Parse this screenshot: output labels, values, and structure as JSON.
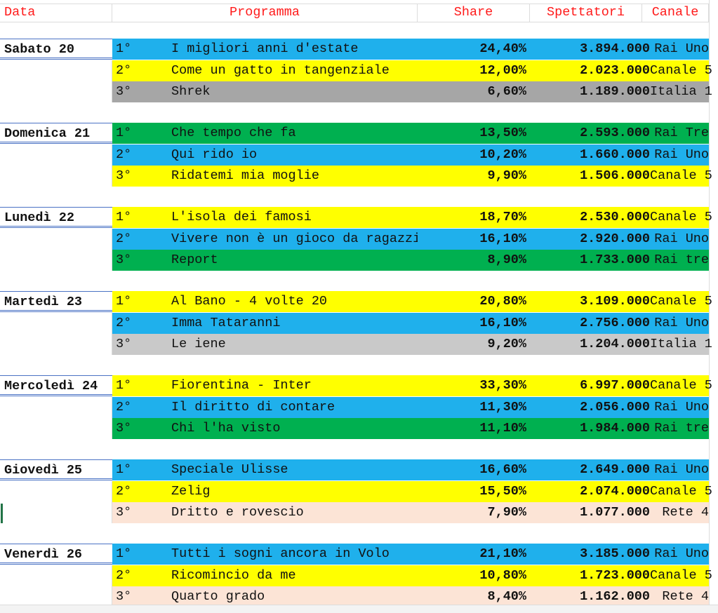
{
  "header": {
    "data": "Data",
    "programma": "Programma",
    "share": "Share",
    "spettatori": "Spettatori",
    "canale": "Canale"
  },
  "colors": {
    "blue": "#1fb0ec",
    "yellow": "#ffff00",
    "gray": "#a6a6a6",
    "lightgray": "#c9c9c9",
    "green": "#00b050",
    "peach": "#fce4d6",
    "header_text": "#ff1a1a"
  },
  "groups": [
    {
      "date": "Sabato 20",
      "rows": [
        {
          "rank": "1°",
          "title": "I migliori anni d'estate",
          "share": "24,40%",
          "viewers": "3.894.000",
          "channel": "Rai Uno",
          "color": "blue"
        },
        {
          "rank": "2°",
          "title": "Come un gatto in tangenziale",
          "share": "12,00%",
          "viewers": "2.023.000",
          "channel": "Canale 5",
          "color": "yellow"
        },
        {
          "rank": "3°",
          "title": "Shrek",
          "share": "6,60%",
          "viewers": "1.189.000",
          "channel": "Italia 1",
          "color": "gray"
        }
      ]
    },
    {
      "date": "Domenica 21",
      "rows": [
        {
          "rank": "1°",
          "title": "Che tempo che fa",
          "share": "13,50%",
          "viewers": "2.593.000",
          "channel": "Rai Tre",
          "color": "green"
        },
        {
          "rank": "2°",
          "title": "Qui rido io",
          "share": "10,20%",
          "viewers": "1.660.000",
          "channel": "Rai Uno",
          "color": "blue"
        },
        {
          "rank": "3°",
          "title": "Ridatemi mia moglie",
          "share": "9,90%",
          "viewers": "1.506.000",
          "channel": "Canale 5",
          "color": "yellow"
        }
      ]
    },
    {
      "date": "Lunedì 22",
      "rows": [
        {
          "rank": "1°",
          "title": "L'isola dei famosi",
          "share": "18,70%",
          "viewers": "2.530.000",
          "channel": "Canale 5",
          "color": "yellow"
        },
        {
          "rank": "2°",
          "title": "Vivere non è un gioco da ragazzi",
          "share": "16,10%",
          "viewers": "2.920.000",
          "channel": "Rai Uno",
          "color": "blue"
        },
        {
          "rank": "3°",
          "title": "Report",
          "share": "8,90%",
          "viewers": "1.733.000",
          "channel": "Rai tre",
          "color": "green"
        }
      ]
    },
    {
      "date": "Martedì 23",
      "rows": [
        {
          "rank": "1°",
          "title": "Al Bano - 4 volte 20",
          "share": "20,80%",
          "viewers": "3.109.000",
          "channel": "Canale 5",
          "color": "yellow"
        },
        {
          "rank": "2°",
          "title": "Imma Tataranni",
          "share": "16,10%",
          "viewers": "2.756.000",
          "channel": "Rai Uno",
          "color": "blue"
        },
        {
          "rank": "3°",
          "title": "Le iene",
          "share": "9,20%",
          "viewers": "1.204.000",
          "channel": "Italia 1",
          "color": "lightgray"
        }
      ]
    },
    {
      "date": "Mercoledì 24",
      "rows": [
        {
          "rank": "1°",
          "title": "Fiorentina - Inter",
          "share": "33,30%",
          "viewers": "6.997.000",
          "channel": "Canale 5",
          "color": "yellow"
        },
        {
          "rank": "2°",
          "title": "Il diritto di contare",
          "share": "11,30%",
          "viewers": "2.056.000",
          "channel": "Rai Uno",
          "color": "blue"
        },
        {
          "rank": "3°",
          "title": "Chi l'ha visto",
          "share": "11,10%",
          "viewers": "1.984.000",
          "channel": "Rai tre",
          "color": "green"
        }
      ]
    },
    {
      "date": "Giovedì 25",
      "rows": [
        {
          "rank": "1°",
          "title": "Speciale Ulisse",
          "share": "16,60%",
          "viewers": "2.649.000",
          "channel": "Rai Uno",
          "color": "blue"
        },
        {
          "rank": "2°",
          "title": "Zelig",
          "share": "15,50%",
          "viewers": "2.074.000",
          "channel": "Canale 5",
          "color": "yellow"
        },
        {
          "rank": "3°",
          "title": "Dritto e rovescio",
          "share": "7,90%",
          "viewers": "1.077.000",
          "channel": "Rete 4 ",
          "color": "peach"
        }
      ]
    },
    {
      "date": "Venerdì 26",
      "rows": [
        {
          "rank": "1°",
          "title": "Tutti i sogni ancora in Volo",
          "share": "21,10%",
          "viewers": "3.185.000",
          "channel": "Rai Uno",
          "color": "blue"
        },
        {
          "rank": "2°",
          "title": "Ricomincio da me",
          "share": "10,80%",
          "viewers": "1.723.000",
          "channel": "Canale 5",
          "color": "yellow"
        },
        {
          "rank": "3°",
          "title": "Quarto grado",
          "share": "8,40%",
          "viewers": "1.162.000",
          "channel": "Rete 4 ",
          "color": "peach"
        }
      ]
    }
  ]
}
